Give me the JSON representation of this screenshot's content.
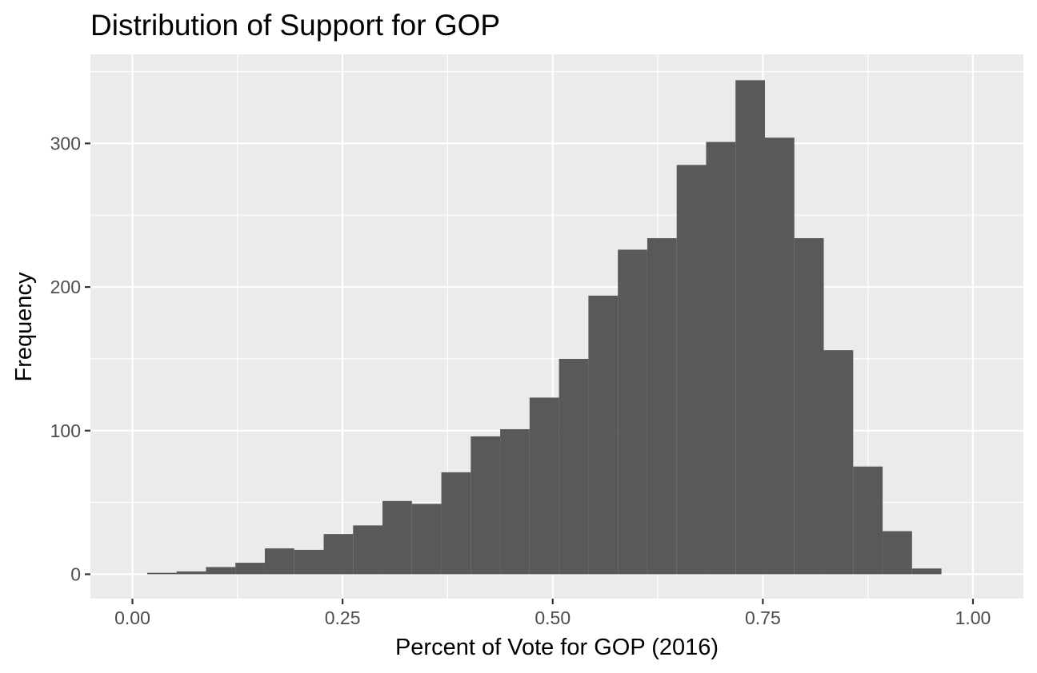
{
  "chart_data": {
    "type": "bar",
    "title": "Distribution of Support for GOP",
    "xlabel": "Percent of Vote for GOP (2016)",
    "ylabel": "Frequency",
    "xlim": [
      -0.05,
      1.06
    ],
    "ylim": [
      -17,
      362
    ],
    "x_ticks": [
      0,
      0.25,
      0.5,
      0.75,
      1
    ],
    "x_tick_labels": [
      "0.00",
      "0.25",
      "0.50",
      "0.75",
      "1.00"
    ],
    "y_ticks": [
      0,
      100,
      200,
      300
    ],
    "y_tick_labels": [
      "0",
      "100",
      "200",
      "300"
    ],
    "grid": true,
    "legend": "none",
    "bar_color": "#595959",
    "panel_color": "#ebebeb",
    "bins": [
      {
        "x0": 0.0175,
        "x1": 0.0525,
        "count": 1
      },
      {
        "x0": 0.0525,
        "x1": 0.0875,
        "count": 2
      },
      {
        "x0": 0.0875,
        "x1": 0.1225,
        "count": 5
      },
      {
        "x0": 0.1225,
        "x1": 0.1575,
        "count": 8
      },
      {
        "x0": 0.1575,
        "x1": 0.1925,
        "count": 18
      },
      {
        "x0": 0.1925,
        "x1": 0.2275,
        "count": 17
      },
      {
        "x0": 0.2275,
        "x1": 0.2625,
        "count": 28
      },
      {
        "x0": 0.2625,
        "x1": 0.2975,
        "count": 34
      },
      {
        "x0": 0.2975,
        "x1": 0.3325,
        "count": 51
      },
      {
        "x0": 0.3325,
        "x1": 0.3675,
        "count": 49
      },
      {
        "x0": 0.3675,
        "x1": 0.4025,
        "count": 71
      },
      {
        "x0": 0.4025,
        "x1": 0.4375,
        "count": 96
      },
      {
        "x0": 0.4375,
        "x1": 0.4725,
        "count": 101
      },
      {
        "x0": 0.4725,
        "x1": 0.5075,
        "count": 123
      },
      {
        "x0": 0.5075,
        "x1": 0.5425,
        "count": 150
      },
      {
        "x0": 0.5425,
        "x1": 0.5775,
        "count": 194
      },
      {
        "x0": 0.5775,
        "x1": 0.6125,
        "count": 226
      },
      {
        "x0": 0.6125,
        "x1": 0.6475,
        "count": 234
      },
      {
        "x0": 0.6475,
        "x1": 0.6825,
        "count": 285
      },
      {
        "x0": 0.6825,
        "x1": 0.7175,
        "count": 301
      },
      {
        "x0": 0.7175,
        "x1": 0.7525,
        "count": 344
      },
      {
        "x0": 0.7525,
        "x1": 0.7875,
        "count": 304
      },
      {
        "x0": 0.7875,
        "x1": 0.8225,
        "count": 234
      },
      {
        "x0": 0.8225,
        "x1": 0.8575,
        "count": 156
      },
      {
        "x0": 0.8575,
        "x1": 0.8925,
        "count": 75
      },
      {
        "x0": 0.8925,
        "x1": 0.9275,
        "count": 30
      },
      {
        "x0": 0.9275,
        "x1": 0.9625,
        "count": 4
      }
    ]
  }
}
